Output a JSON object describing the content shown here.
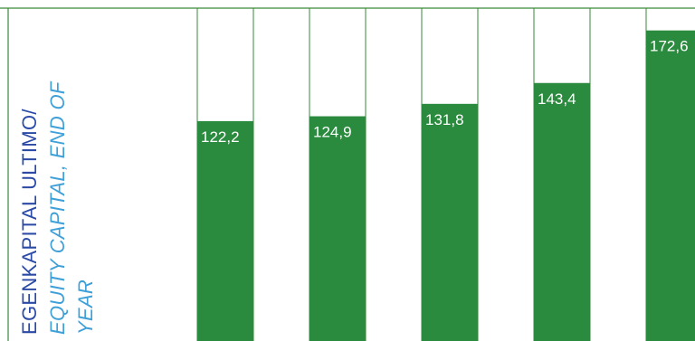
{
  "chart_data": {
    "type": "bar",
    "title_lines": [
      "EGENKAPITAL ULTIMO/",
      "EQUITY CAPITAL, END OF",
      "YEAR"
    ],
    "values": [
      122.2,
      124.9,
      131.8,
      143.4,
      172.6
    ],
    "value_labels": [
      "122,2",
      "124,9",
      "131,8",
      "143,4",
      "172,6"
    ],
    "ylim": [
      0,
      185
    ],
    "grid": false,
    "legend": "none"
  },
  "colors": {
    "bar_fill": "#2a8a3e",
    "frame_line": "#3a8a3a",
    "title_main": "#2a4aa6",
    "title_sub": "#3fa0d8",
    "label_text": "#ffffff"
  }
}
